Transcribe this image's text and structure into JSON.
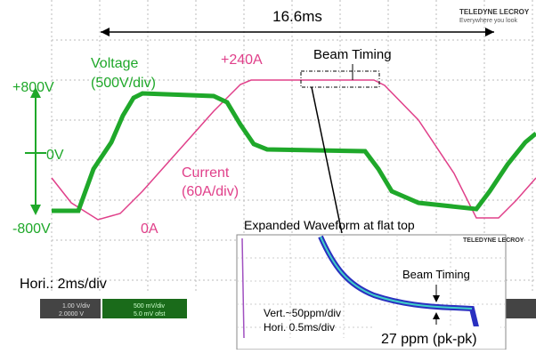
{
  "header": {
    "period": "16.6ms",
    "brand": "TELEDYNE LECROY",
    "brand_sub": "Everywhere you look"
  },
  "labels": {
    "peak_current": "+240A",
    "beam_timing": "Beam Timing",
    "voltage": "Voltage",
    "voltage_scale": "(500V/div)",
    "v_pos": "+800V",
    "v_zero": "0V",
    "v_neg": "-800V",
    "current": "Current",
    "current_scale": "(60A/div)",
    "i_zero": "0A",
    "hori": "Hori.: 2ms/div"
  },
  "inset": {
    "title": "Expanded Waveform at flat top",
    "brand": "TELEDYNE LECROY",
    "beam_timing": "Beam Timing",
    "vert": "Vert.~50ppm/div",
    "hori": "Hori. 0.5ms/div",
    "ripple": "27 ppm (pk-pk)"
  },
  "scope": {
    "ch1_scale": "1.00 V/div",
    "ch1_offset": "2.0000 V",
    "ch2_scale": "500 mV/div",
    "ch2_offset": "5.0 mV ofst"
  }
}
